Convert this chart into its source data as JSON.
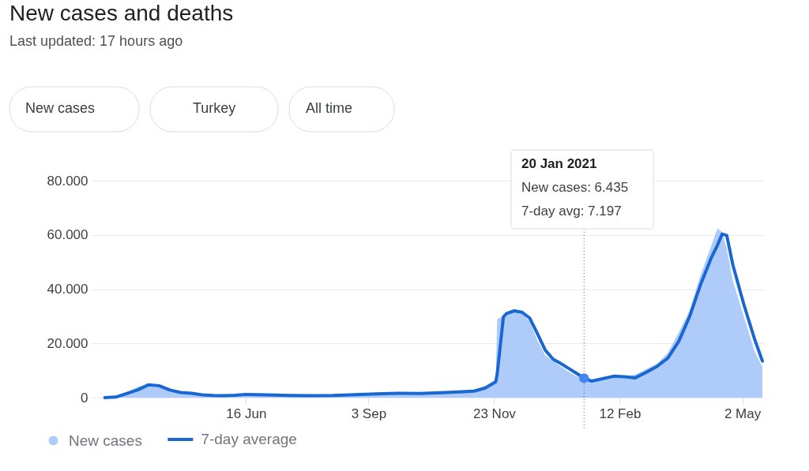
{
  "chart_data": {
    "type": "line",
    "title": "New cases and deaths",
    "subtitle": "Last updated: 17 hours ago",
    "annotations": [
      "New cases",
      "Turkey",
      "All time",
      "20 Jan 2021",
      "New cases: 6.435",
      "7-day avg: 7.197"
    ],
    "x": [
      "2020-03-17",
      "2020-03-24",
      "2020-03-31",
      "2020-04-07",
      "2020-04-14",
      "2020-04-21",
      "2020-04-28",
      "2020-05-05",
      "2020-05-12",
      "2020-05-19",
      "2020-05-26",
      "2020-06-02",
      "2020-06-09",
      "2020-06-16",
      "2020-06-23",
      "2020-06-30",
      "2020-07-14",
      "2020-07-28",
      "2020-08-11",
      "2020-08-25",
      "2020-09-08",
      "2020-09-22",
      "2020-10-06",
      "2020-10-20",
      "2020-11-03",
      "2020-11-10",
      "2020-11-17",
      "2020-11-21",
      "2020-11-24",
      "2020-11-25",
      "2020-11-29",
      "2020-12-01",
      "2020-12-06",
      "2020-12-11",
      "2020-12-16",
      "2020-12-21",
      "2020-12-26",
      "2020-12-31",
      "2021-01-05",
      "2021-01-10",
      "2021-01-15",
      "2021-01-20",
      "2021-01-25",
      "2021-02-01",
      "2021-02-08",
      "2021-02-15",
      "2021-02-22",
      "2021-03-01",
      "2021-03-08",
      "2021-03-15",
      "2021-03-22",
      "2021-03-29",
      "2021-04-05",
      "2021-04-12",
      "2021-04-16",
      "2021-04-19",
      "2021-04-22",
      "2021-04-26",
      "2021-05-03",
      "2021-05-10",
      "2021-05-15"
    ],
    "series": [
      {
        "name": "New cases",
        "type": "area",
        "color": "#aecbfa",
        "values": [
          0,
          300,
          2000,
          3900,
          4900,
          4400,
          2400,
          1800,
          1400,
          1000,
          900,
          800,
          1000,
          1400,
          1200,
          1100,
          900,
          800,
          1100,
          1400,
          1600,
          1700,
          1600,
          2000,
          2400,
          2700,
          3800,
          5200,
          6000,
          29000,
          30000,
          31500,
          32500,
          31000,
          28000,
          21000,
          15500,
          13500,
          11500,
          9500,
          8000,
          6435,
          6000,
          7500,
          8000,
          7800,
          8500,
          10500,
          12500,
          16500,
          24000,
          32000,
          45000,
          56000,
          62500,
          61000,
          55000,
          43000,
          30000,
          17000,
          11300
        ]
      },
      {
        "name": "7-day average",
        "color": "#1967d2",
        "values": [
          0,
          200,
          1500,
          2800,
          4700,
          4400,
          2800,
          1900,
          1600,
          1000,
          800,
          700,
          900,
          1200,
          1100,
          1000,
          800,
          700,
          800,
          1100,
          1400,
          1600,
          1500,
          1800,
          2200,
          2400,
          3500,
          4800,
          5800,
          8700,
          29800,
          31000,
          32000,
          31500,
          29300,
          23500,
          17500,
          14200,
          12600,
          10800,
          9000,
          7197,
          6100,
          7000,
          7900,
          7700,
          7300,
          9300,
          11500,
          14600,
          20700,
          29800,
          41500,
          51500,
          56200,
          60300,
          59800,
          48800,
          34400,
          21500,
          13500
        ]
      },
      {
        "type": "scatter",
        "color": "#4285f4",
        "marker": "circle",
        "x": [
          "2021-01-20"
        ],
        "values": [
          7197
        ]
      }
    ],
    "xlim": [
      "2020-03-08",
      "2021-05-16"
    ],
    "xticks": [
      {
        "value": "2020-06-16",
        "label": "16 Jun"
      },
      {
        "value": "2020-09-03",
        "label": "3 Sep"
      },
      {
        "value": "2020-11-23",
        "label": "23 Nov"
      },
      {
        "value": "2021-02-12",
        "label": "12 Feb"
      },
      {
        "value": "2021-05-02",
        "label": "2 May"
      }
    ],
    "ylim": [
      0,
      80000
    ],
    "yticks": [
      0,
      {
        "value": 20000,
        "label": "20.000"
      },
      {
        "value": 40000,
        "label": "40.000"
      },
      {
        "value": 60000,
        "label": "60.000"
      },
      {
        "value": 80000,
        "label": "80.000"
      }
    ],
    "ref_lines": [
      {
        "axis": "x",
        "value": "2021-01-20",
        "color": "#5f6368",
        "line_style": "dotted"
      }
    ],
    "grid": "y",
    "legend": "bottom",
    "line_style": "solid"
  }
}
